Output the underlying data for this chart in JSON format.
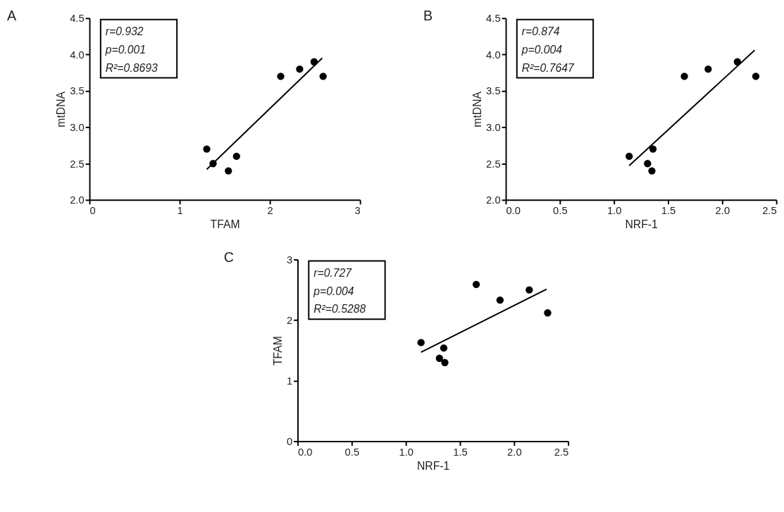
{
  "chart_data": [
    {
      "type": "scatter",
      "title": "A",
      "xlabel": "TFAM",
      "ylabel": "mtDNA",
      "annotations": [
        "r=0.932",
        "p=0.001",
        "R²=0.8693"
      ],
      "xlim": [
        0,
        3
      ],
      "ylim": [
        2,
        4.5
      ],
      "xticks": [
        0,
        1,
        2,
        3
      ],
      "yticks": [
        {
          "value": 2,
          "label": "2.0"
        },
        {
          "value": 2.5,
          "label": "2.5"
        },
        {
          "value": 3,
          "label": "3.0"
        },
        {
          "value": 3.5,
          "label": "3.5"
        },
        {
          "value": 4,
          "label": "4.0"
        },
        {
          "value": 4.5,
          "label": "4.5"
        }
      ],
      "grid": false,
      "marker": "circle",
      "series": [
        {
          "color": "#000000",
          "x": [
            1.3,
            1.37,
            1.54,
            1.63,
            2.12,
            2.33,
            2.49,
            2.59
          ],
          "values": [
            2.7,
            2.5,
            2.4,
            2.6,
            3.7,
            3.8,
            3.9,
            3.7
          ]
        },
        {
          "type": "line",
          "marker": "none",
          "line_style": "solid",
          "color": "#000000",
          "x": [
            1.3,
            2.58
          ],
          "values": [
            2.42,
            3.95
          ]
        }
      ]
    },
    {
      "type": "scatter",
      "title": "B",
      "xlabel": "NRF-1",
      "ylabel": "mtDNA",
      "annotations": [
        "r=0.874",
        "p=0.004",
        "R²=0.7647"
      ],
      "xlim": [
        0,
        2.5
      ],
      "ylim": [
        2,
        4.5
      ],
      "xticks": [
        {
          "value": 0,
          "label": "0.0"
        },
        0.5,
        {
          "value": 1,
          "label": "1.0"
        },
        1.5,
        {
          "value": 2,
          "label": "2.0"
        },
        2.5
      ],
      "yticks": [
        {
          "value": 2,
          "label": "2.0"
        },
        {
          "value": 2.5,
          "label": "2.5"
        },
        {
          "value": 3,
          "label": "3.0"
        },
        {
          "value": 3.5,
          "label": "3.5"
        },
        {
          "value": 4,
          "label": "4.0"
        },
        {
          "value": 4.5,
          "label": "4.5"
        }
      ],
      "grid": false,
      "marker": "circle",
      "series": [
        {
          "color": "#000000",
          "x": [
            1.14,
            1.31,
            1.35,
            1.36,
            1.65,
            1.87,
            2.14,
            2.31
          ],
          "values": [
            2.6,
            2.5,
            2.4,
            2.7,
            3.7,
            3.8,
            3.9,
            3.7
          ]
        },
        {
          "type": "line",
          "marker": "none",
          "line_style": "solid",
          "color": "#000000",
          "x": [
            1.14,
            2.3
          ],
          "values": [
            2.47,
            4.06
          ]
        }
      ]
    },
    {
      "type": "scatter",
      "title": "C",
      "xlabel": "NRF-1",
      "ylabel": "TFAM",
      "annotations": [
        "r=0.727",
        "p=0.004",
        "R²=0.5288"
      ],
      "xlim": [
        0,
        2.5
      ],
      "ylim": [
        0,
        3
      ],
      "xticks": [
        {
          "value": 0,
          "label": "0.0"
        },
        0.5,
        {
          "value": 1,
          "label": "1.0"
        },
        1.5,
        {
          "value": 2,
          "label": "2.0"
        },
        2.5
      ],
      "yticks": [
        0,
        1,
        2,
        3
      ],
      "grid": false,
      "marker": "circle",
      "series": [
        {
          "color": "#000000",
          "x": [
            1.14,
            1.31,
            1.36,
            1.35,
            1.65,
            1.87,
            2.14,
            2.31
          ],
          "values": [
            1.63,
            1.37,
            1.3,
            1.54,
            2.59,
            2.33,
            2.5,
            2.12
          ]
        },
        {
          "type": "line",
          "marker": "none",
          "line_style": "solid",
          "color": "#000000",
          "x": [
            1.14,
            2.3
          ],
          "values": [
            1.47,
            2.51
          ]
        }
      ]
    }
  ]
}
